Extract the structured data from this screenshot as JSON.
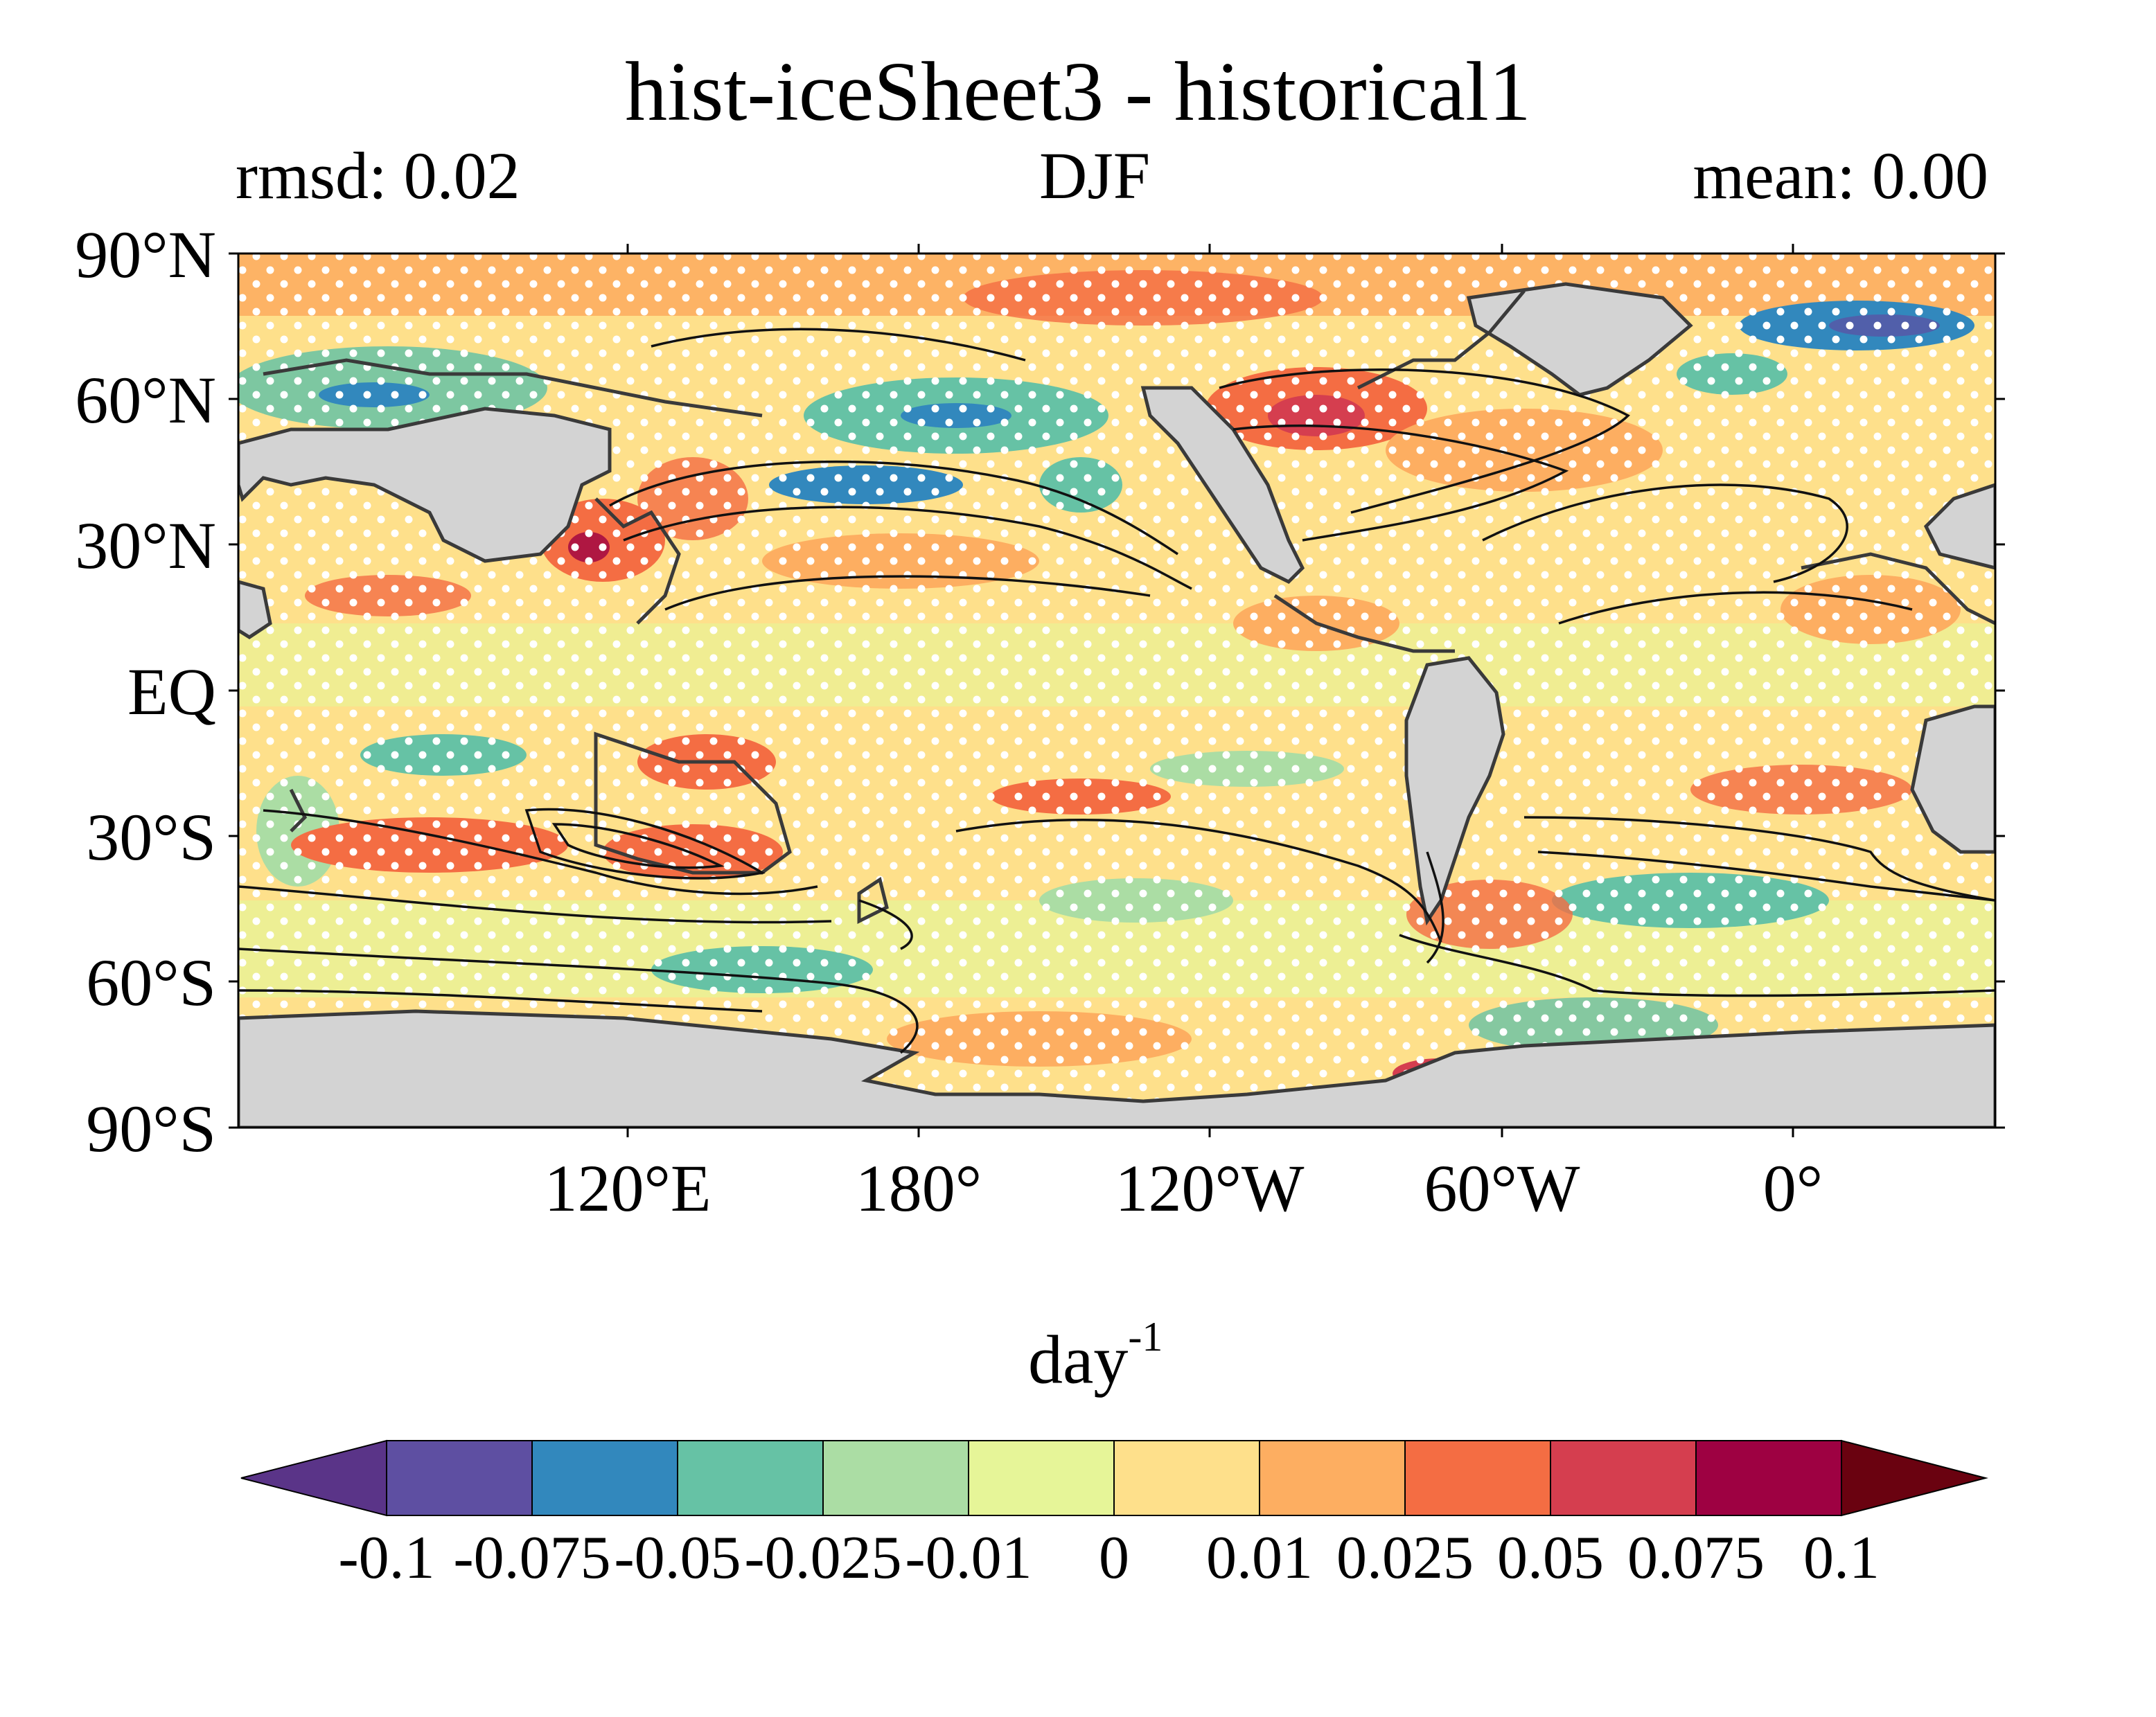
{
  "header": {
    "title": "hist-iceSheet3 - historical1",
    "rmsd": "rmsd: 0.02",
    "season": "DJF",
    "mean": "mean: 0.00"
  },
  "axes": {
    "lat_labels": [
      "90°N",
      "60°N",
      "30°N",
      "EQ",
      "30°S",
      "60°S",
      "90°S"
    ],
    "lon_labels": [
      "120°E",
      "180°",
      "120°W",
      "60°W",
      "0°"
    ]
  },
  "colorbar": {
    "unit": "day",
    "unit_exponent": "-1",
    "tick_labels": [
      "-0.1",
      "-0.075",
      "-0.05",
      "-0.025",
      "-0.01",
      "0",
      "0.01",
      "0.025",
      "0.05",
      "0.075",
      "0.1"
    ],
    "colors": [
      "#5e4fa2",
      "#3288bd",
      "#66c2a5",
      "#abdda4",
      "#e6f598",
      "#fee08b",
      "#fdae61",
      "#f46d43",
      "#d53e4f",
      "#9e0142"
    ],
    "under_color": "#5a3488",
    "over_color": "#6a0210"
  },
  "map": {
    "land_color": "#d3d3d3",
    "stippling_color": "#ffffff",
    "contour_color": "#111111",
    "coastline_color": "#3a3a3a"
  }
}
